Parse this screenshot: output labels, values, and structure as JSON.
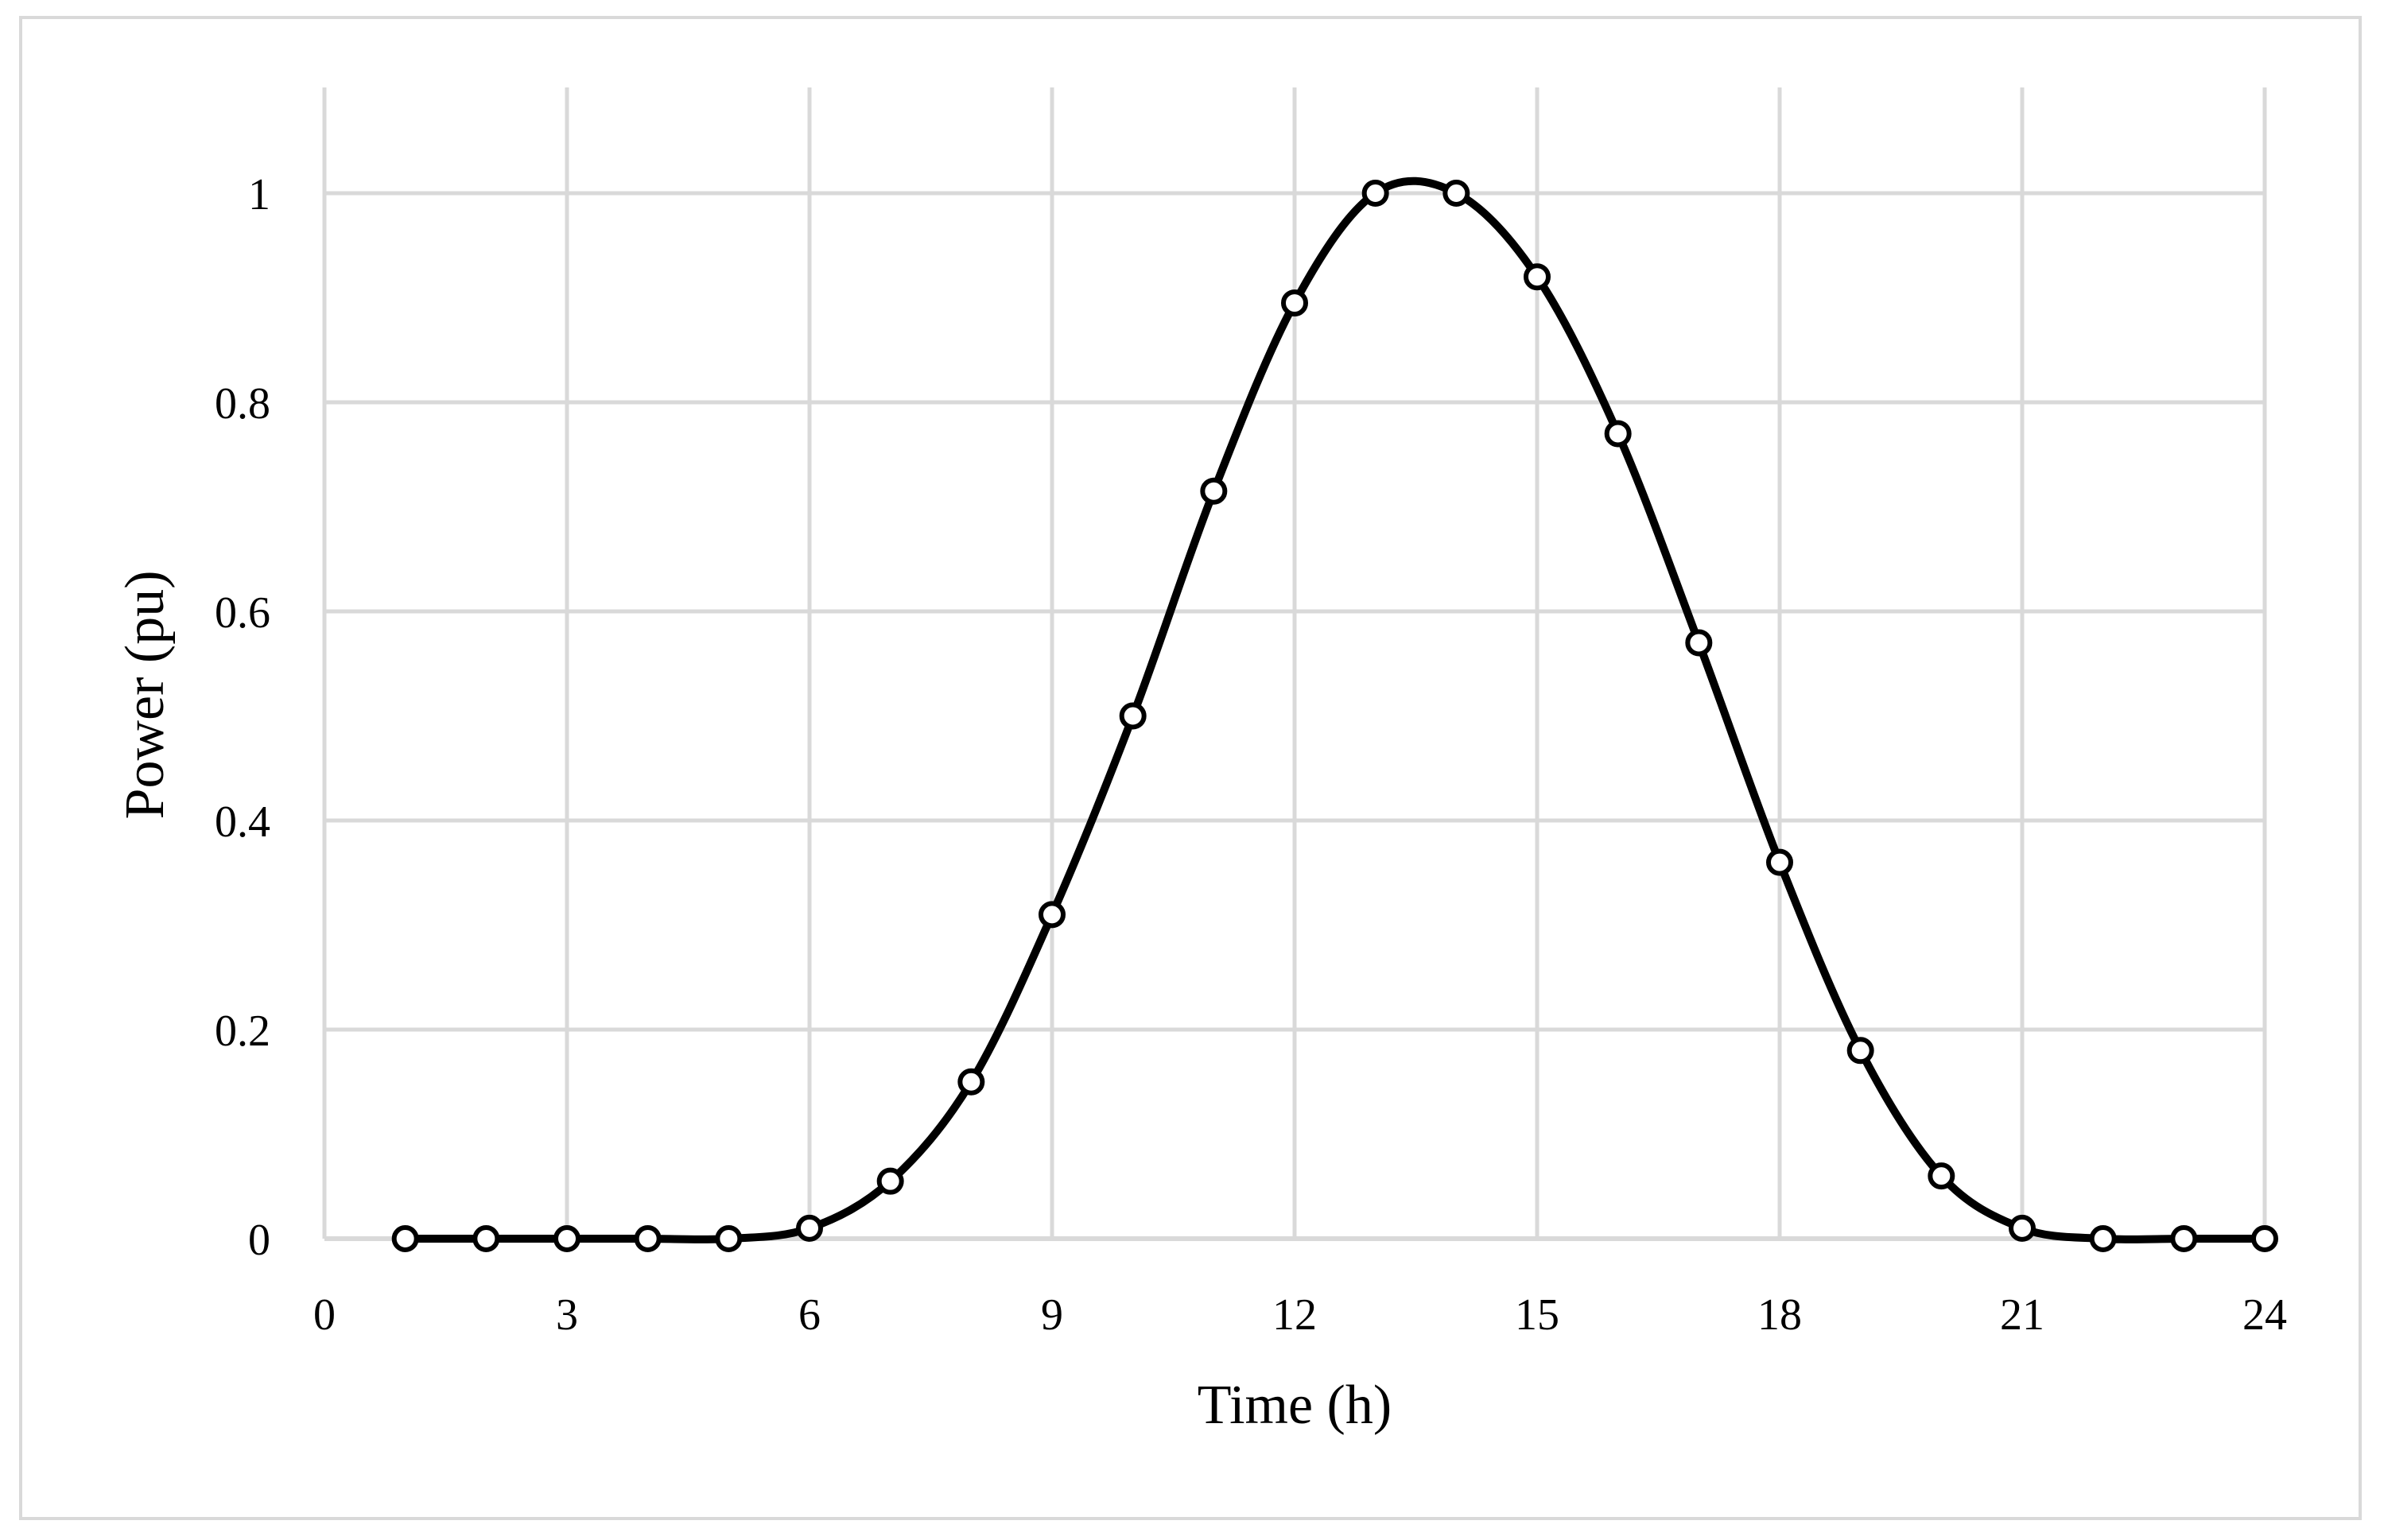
{
  "chart_data": {
    "type": "line",
    "title": "",
    "xlabel": "Time (h)",
    "ylabel": "Power (pu)",
    "xlim": [
      0,
      24
    ],
    "ylim": [
      0,
      1.1
    ],
    "x_ticks": [
      0,
      3,
      6,
      9,
      12,
      15,
      18,
      21,
      24
    ],
    "y_ticks": [
      0,
      0.2,
      0.4,
      0.6,
      0.8,
      1
    ],
    "x_tick_labels": [
      "0",
      "3",
      "6",
      "9",
      "12",
      "15",
      "18",
      "21",
      "24"
    ],
    "y_tick_labels": [
      "0",
      "0.2",
      "0.4",
      "0.6",
      "0.8",
      "1"
    ],
    "grid": true,
    "legend": "none",
    "smooth": true,
    "line_color": "#000000",
    "marker": "open-circle",
    "series": [
      {
        "x": [
          1,
          2,
          3,
          4,
          5,
          6,
          7,
          8,
          9,
          10,
          11,
          12,
          13,
          14,
          15,
          16,
          17,
          18,
          19,
          20,
          21,
          22,
          23,
          24
        ],
        "values": [
          0,
          0,
          0,
          0,
          0,
          0.01,
          0.055,
          0.15,
          0.31,
          0.5,
          0.715,
          0.895,
          1,
          1,
          0.92,
          0.77,
          0.57,
          0.36,
          0.18,
          0.06,
          0.01,
          0,
          0,
          0
        ]
      }
    ]
  }
}
